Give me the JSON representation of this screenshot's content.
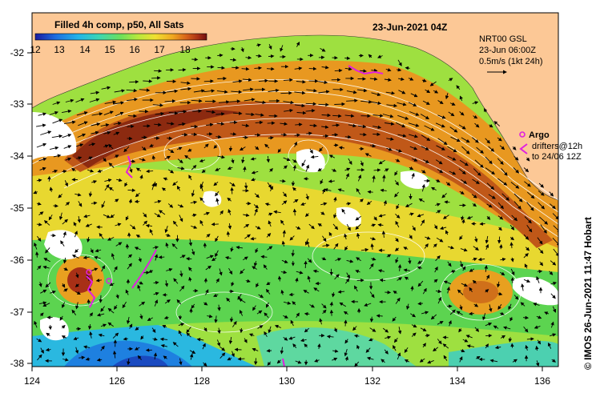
{
  "map": {
    "title": "Filled 4h comp, p50, All Sats",
    "date_label": "23-Jun-2021 04Z",
    "colorbar": {
      "ticks": [
        "12",
        "13",
        "14",
        "15",
        "16",
        "17",
        "18"
      ],
      "colors": [
        "#1a1aa0",
        "#1e6ee0",
        "#22b4e8",
        "#3cd6b4",
        "#6ee05a",
        "#b8e83c",
        "#f0e030",
        "#f0a820",
        "#d8641a",
        "#a83016",
        "#701010"
      ]
    },
    "gsl_info": {
      "line1": "NRT00 GSL",
      "line2": "23-Jun 06:00Z",
      "line3": "0.5m/s (1kt 24h)"
    },
    "legend": {
      "argo": "Argo",
      "drifters_line1": "drifters@12h",
      "drifters_line2": "to 24/06 12Z"
    },
    "credit": "© IMOS 26-Jun-2021 11:47 Hobart",
    "x_ticks": [
      "124",
      "126",
      "128",
      "130",
      "132",
      "134",
      "136"
    ],
    "y_ticks": [
      "-32",
      "-33",
      "-34",
      "-35",
      "-36",
      "-37",
      "-38"
    ],
    "colors": {
      "land": "#fcc896",
      "argo": "#e020e0",
      "vector": "#000000",
      "contour": "#ffffff"
    }
  }
}
